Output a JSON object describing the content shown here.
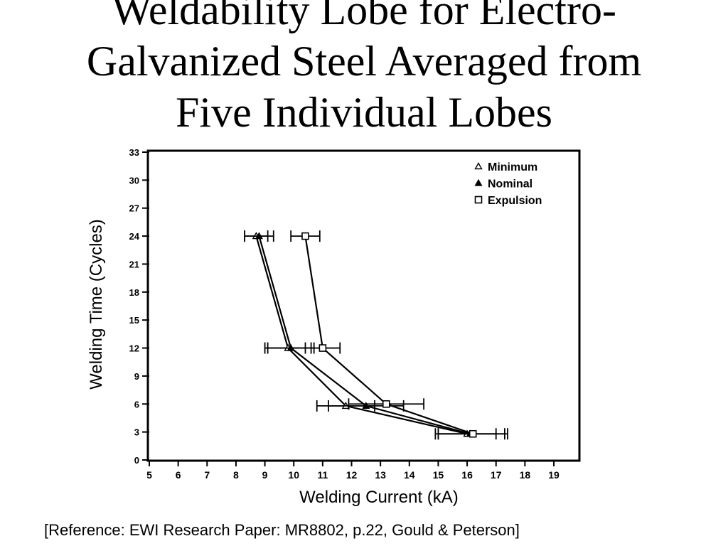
{
  "slide": {
    "title_lines": [
      "Weldability Lobe for Electro-",
      "Galvanized Steel Averaged from",
      "Five Individual Lobes"
    ],
    "reference": "[Reference: EWI Research Paper: MR8802, p.22, Gould & Peterson]"
  },
  "chart_data": {
    "type": "line",
    "title": "",
    "xlabel": "Welding Current (kA)",
    "ylabel": "Welding Time (Cycles)",
    "xlim": [
      5,
      19.5
    ],
    "ylim": [
      0,
      33
    ],
    "xticks": [
      "5",
      "6",
      "7",
      "8",
      "9",
      "10",
      "11",
      "12",
      "13",
      "14",
      "15",
      "16",
      "17",
      "18",
      "19"
    ],
    "yticks": [
      "0",
      "3",
      "6",
      "9",
      "12",
      "15",
      "18",
      "21",
      "24",
      "27",
      "30",
      "33"
    ],
    "legend": "top-right",
    "series": [
      {
        "name": "Minimum",
        "marker": "triangle-open",
        "points": [
          {
            "x": 16.0,
            "y": 2.8,
            "xerr": 1.0
          },
          {
            "x": 11.8,
            "y": 5.8,
            "xerr": 1.0
          },
          {
            "x": 9.8,
            "y": 12,
            "xerr": 0.8
          },
          {
            "x": 8.7,
            "y": 24,
            "xerr": 0.4
          }
        ]
      },
      {
        "name": "Nominal",
        "marker": "triangle-filled",
        "points": [
          {
            "x": 16.1,
            "y": 2.8,
            "xerr": 1.2
          },
          {
            "x": 12.5,
            "y": 5.8,
            "xerr": 1.3
          },
          {
            "x": 9.9,
            "y": 12,
            "xerr": 0.8
          },
          {
            "x": 8.8,
            "y": 24,
            "xerr": 0.5
          }
        ]
      },
      {
        "name": "Expulsion",
        "marker": "square-open",
        "points": [
          {
            "x": 16.2,
            "y": 2.8,
            "xerr": 1.2
          },
          {
            "x": 13.2,
            "y": 6,
            "xerr": 1.3
          },
          {
            "x": 11.0,
            "y": 12,
            "xerr": 0.6
          },
          {
            "x": 10.4,
            "y": 24,
            "xerr": 0.5
          }
        ]
      }
    ],
    "line_color": "#000000"
  }
}
